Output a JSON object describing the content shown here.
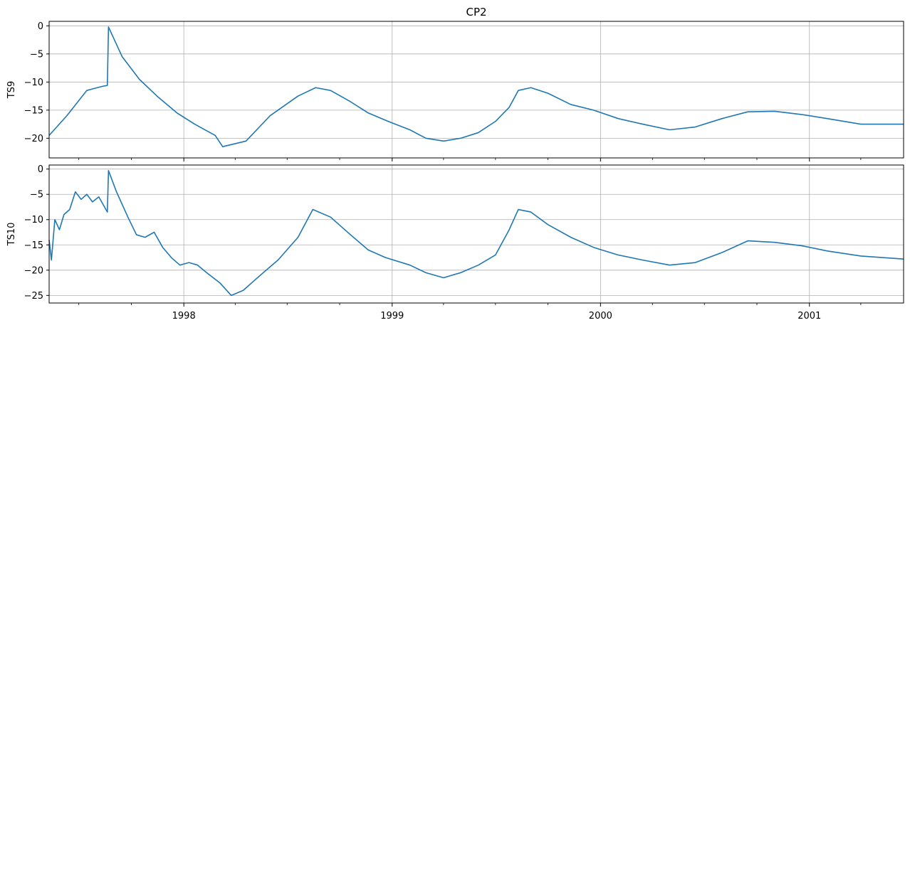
{
  "chart_data": {
    "type": "line",
    "title": "CP2",
    "grid": true,
    "series_color": "#1f77b4",
    "xlim": [
      "1997-05-10",
      "2001-06-15"
    ],
    "x_tick_labels": [
      "1998",
      "1999",
      "2000",
      "2001"
    ],
    "panels": [
      {
        "ylabel": "TS9",
        "ylim": [
          -23.5,
          0.8
        ],
        "y_ticks": [
          0,
          -5,
          -10,
          -15,
          -20
        ],
        "y_tick_labels": [
          "0",
          "−5",
          "−10",
          "−15",
          "−20"
        ],
        "series": [
          {
            "x": [
              "1997-05-10",
              "1997-06-10",
              "1997-07-15",
              "1997-08-10",
              "1997-08-20",
              "1997-08-22",
              "1997-09-15",
              "1997-10-15",
              "1997-11-15",
              "1997-12-20",
              "1998-01-20",
              "1998-02-25",
              "1998-03-10",
              "1998-04-20",
              "1998-06-01",
              "1998-07-20",
              "1998-08-20",
              "1998-09-15",
              "1998-10-20",
              "1998-11-20",
              "1998-12-25",
              "1999-02-01",
              "1999-03-01",
              "1999-04-01",
              "1999-05-01",
              "1999-06-01",
              "1999-07-01",
              "1999-07-25",
              "1999-08-10",
              "1999-09-01",
              "1999-10-01",
              "1999-11-10",
              "1999-12-20",
              "2000-02-01",
              "2000-03-15",
              "2000-05-01",
              "2000-06-15",
              "2000-08-01",
              "2000-09-15",
              "2000-11-01",
              "2000-12-20",
              "2001-02-01",
              "2001-04-01",
              "2001-06-15"
            ],
            "y": [
              -19.5,
              -16.0,
              -11.5,
              -10.8,
              -10.6,
              -0.2,
              -5.5,
              -9.5,
              -12.5,
              -15.5,
              -17.5,
              -19.5,
              -21.5,
              -20.5,
              -16.0,
              -12.5,
              -11.0,
              -11.5,
              -13.5,
              -15.5,
              -17.0,
              -18.5,
              -20.0,
              -20.5,
              -20.0,
              -19.0,
              -17.0,
              -14.5,
              -11.5,
              -11.0,
              -12.0,
              -14.0,
              -15.0,
              -16.5,
              -17.5,
              -18.5,
              -18.0,
              -16.5,
              -15.3,
              -15.2,
              -15.8,
              -16.5,
              -17.5,
              -17.5
            ]
          }
        ]
      },
      {
        "ylabel": "TS10",
        "ylim": [
          -26.5,
          0.8
        ],
        "y_ticks": [
          0,
          -5,
          -10,
          -15,
          -20,
          -25
        ],
        "y_tick_labels": [
          "0",
          "−5",
          "−10",
          "−15",
          "−20",
          "−25"
        ],
        "series": [
          {
            "x": [
              "1997-05-10",
              "1997-05-14",
              "1997-05-20",
              "1997-05-28",
              "1997-06-05",
              "1997-06-15",
              "1997-06-25",
              "1997-07-05",
              "1997-07-15",
              "1997-07-25",
              "1997-08-05",
              "1997-08-15",
              "1997-08-20",
              "1997-08-22",
              "1997-09-05",
              "1997-09-25",
              "1997-10-10",
              "1997-10-25",
              "1997-11-10",
              "1997-11-25",
              "1997-12-10",
              "1997-12-25",
              "1998-01-10",
              "1998-01-25",
              "1998-02-10",
              "1998-03-05",
              "1998-03-25",
              "1998-04-15",
              "1998-05-15",
              "1998-06-15",
              "1998-07-20",
              "1998-08-15",
              "1998-09-15",
              "1998-10-20",
              "1998-11-20",
              "1998-12-20",
              "1999-02-01",
              "1999-03-01",
              "1999-04-01",
              "1999-05-01",
              "1999-06-01",
              "1999-07-01",
              "1999-07-25",
              "1999-08-10",
              "1999-09-01",
              "1999-10-01",
              "1999-11-10",
              "1999-12-20",
              "2000-02-01",
              "2000-03-15",
              "2000-05-01",
              "2000-06-15",
              "2000-08-01",
              "2000-09-15",
              "2000-11-01",
              "2000-12-20",
              "2001-02-01",
              "2001-04-01",
              "2001-06-15"
            ],
            "y": [
              -14.0,
              -18.0,
              -10.0,
              -12.0,
              -9.0,
              -8.0,
              -4.5,
              -6.0,
              -5.0,
              -6.5,
              -5.5,
              -7.5,
              -8.5,
              -0.3,
              -4.5,
              -9.5,
              -13.0,
              -13.5,
              -12.5,
              -15.5,
              -17.5,
              -19.0,
              -18.5,
              -19.0,
              -20.5,
              -22.5,
              -25.0,
              -24.0,
              -21.0,
              -18.0,
              -13.5,
              -8.0,
              -9.5,
              -13.0,
              -16.0,
              -17.5,
              -19.0,
              -20.5,
              -21.5,
              -20.5,
              -19.0,
              -17.0,
              -12.0,
              -8.0,
              -8.5,
              -11.0,
              -13.5,
              -15.5,
              -17.0,
              -18.0,
              -19.0,
              -18.5,
              -16.5,
              -14.2,
              -14.5,
              -15.2,
              -16.2,
              -17.2,
              -17.8
            ]
          }
        ]
      }
    ]
  }
}
